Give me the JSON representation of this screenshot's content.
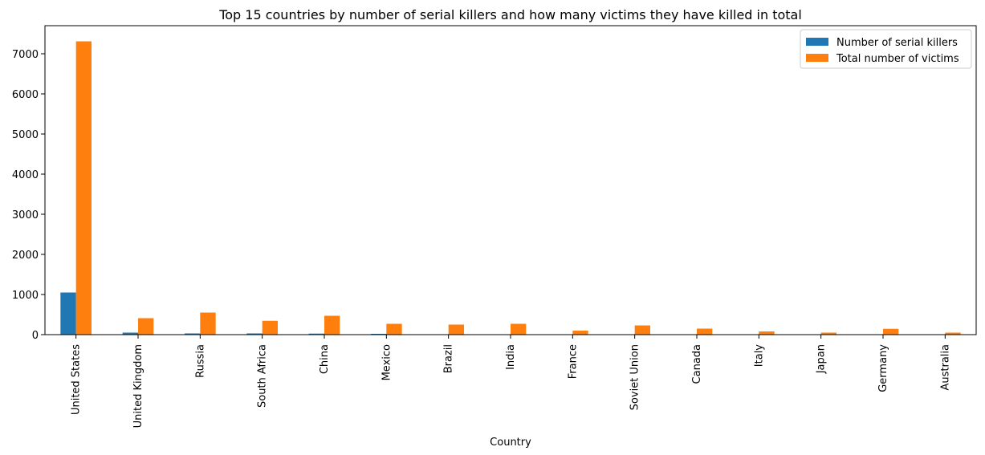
{
  "chart_data": {
    "type": "bar",
    "title": "Top 15 countries by number of serial killers and how many victims they have killed in total",
    "xlabel": "Country",
    "ylabel": "",
    "categories": [
      "United States",
      "United Kingdom",
      "Russia",
      "South Africa",
      "China",
      "Mexico",
      "Brazil",
      "India",
      "France",
      "Soviet Union",
      "Canada",
      "Italy",
      "Japan",
      "Germany",
      "Australia"
    ],
    "series": [
      {
        "name": "Number of serial killers",
        "color": "#1f77b4",
        "values": [
          1050,
          50,
          30,
          30,
          25,
          20,
          10,
          10,
          10,
          10,
          10,
          5,
          5,
          5,
          5
        ]
      },
      {
        "name": "Total number of victims",
        "color": "#ff7f0e",
        "values": [
          7310,
          410,
          550,
          345,
          470,
          270,
          250,
          270,
          100,
          230,
          150,
          80,
          50,
          145,
          50
        ]
      }
    ],
    "ylim": [
      0,
      7700
    ],
    "yticks": [
      0,
      1000,
      2000,
      3000,
      4000,
      5000,
      6000,
      7000
    ],
    "grid": false,
    "legend_position": "top-right"
  }
}
